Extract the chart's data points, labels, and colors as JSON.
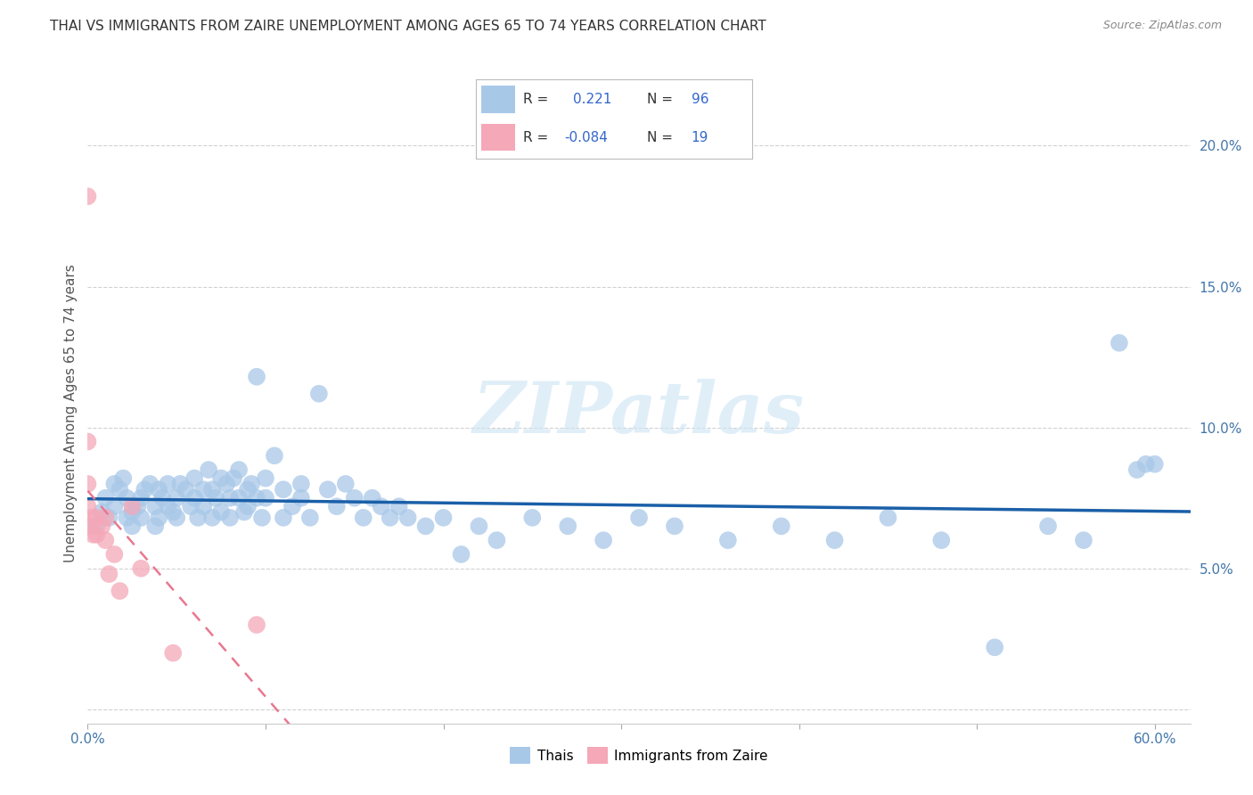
{
  "title": "THAI VS IMMIGRANTS FROM ZAIRE UNEMPLOYMENT AMONG AGES 65 TO 74 YEARS CORRELATION CHART",
  "source": "Source: ZipAtlas.com",
  "ylabel": "Unemployment Among Ages 65 to 74 years",
  "xlim": [
    0.0,
    0.62
  ],
  "ylim": [
    -0.005,
    0.215
  ],
  "xtick_positions": [
    0.0,
    0.1,
    0.2,
    0.3,
    0.4,
    0.5,
    0.6
  ],
  "xticklabels": [
    "0.0%",
    "",
    "",
    "",
    "",
    "",
    "60.0%"
  ],
  "ytick_positions": [
    0.0,
    0.05,
    0.1,
    0.15,
    0.2
  ],
  "yticklabels": [
    "",
    "5.0%",
    "10.0%",
    "15.0%",
    "20.0%"
  ],
  "thai_R": 0.221,
  "thai_N": 96,
  "zaire_R": -0.084,
  "zaire_N": 19,
  "thai_color": "#a8c8e8",
  "zaire_color": "#f4a8b8",
  "thai_line_color": "#1a5fa8",
  "zaire_line_color": "#e87890",
  "watermark": "ZIPatlas",
  "thai_scatter_x": [
    0.005,
    0.008,
    0.01,
    0.012,
    0.015,
    0.015,
    0.018,
    0.02,
    0.022,
    0.022,
    0.025,
    0.025,
    0.028,
    0.03,
    0.03,
    0.032,
    0.035,
    0.038,
    0.038,
    0.04,
    0.04,
    0.042,
    0.045,
    0.045,
    0.048,
    0.05,
    0.05,
    0.052,
    0.055,
    0.058,
    0.06,
    0.06,
    0.062,
    0.065,
    0.065,
    0.068,
    0.07,
    0.07,
    0.072,
    0.075,
    0.075,
    0.078,
    0.08,
    0.08,
    0.082,
    0.085,
    0.085,
    0.088,
    0.09,
    0.09,
    0.092,
    0.095,
    0.095,
    0.098,
    0.1,
    0.1,
    0.105,
    0.11,
    0.11,
    0.115,
    0.12,
    0.12,
    0.125,
    0.13,
    0.135,
    0.14,
    0.145,
    0.15,
    0.155,
    0.16,
    0.165,
    0.17,
    0.175,
    0.18,
    0.19,
    0.2,
    0.21,
    0.22,
    0.23,
    0.25,
    0.27,
    0.29,
    0.31,
    0.33,
    0.36,
    0.39,
    0.42,
    0.45,
    0.48,
    0.51,
    0.54,
    0.56,
    0.58,
    0.59,
    0.595,
    0.6
  ],
  "thai_scatter_y": [
    0.065,
    0.07,
    0.075,
    0.068,
    0.072,
    0.08,
    0.078,
    0.082,
    0.068,
    0.075,
    0.07,
    0.065,
    0.072,
    0.075,
    0.068,
    0.078,
    0.08,
    0.072,
    0.065,
    0.078,
    0.068,
    0.075,
    0.08,
    0.072,
    0.07,
    0.075,
    0.068,
    0.08,
    0.078,
    0.072,
    0.082,
    0.075,
    0.068,
    0.078,
    0.072,
    0.085,
    0.078,
    0.068,
    0.075,
    0.082,
    0.07,
    0.08,
    0.075,
    0.068,
    0.082,
    0.085,
    0.075,
    0.07,
    0.078,
    0.072,
    0.08,
    0.118,
    0.075,
    0.068,
    0.082,
    0.075,
    0.09,
    0.078,
    0.068,
    0.072,
    0.08,
    0.075,
    0.068,
    0.112,
    0.078,
    0.072,
    0.08,
    0.075,
    0.068,
    0.075,
    0.072,
    0.068,
    0.072,
    0.068,
    0.065,
    0.068,
    0.055,
    0.065,
    0.06,
    0.068,
    0.065,
    0.06,
    0.068,
    0.065,
    0.06,
    0.065,
    0.06,
    0.068,
    0.06,
    0.022,
    0.065,
    0.06,
    0.13,
    0.085,
    0.087,
    0.087
  ],
  "zaire_scatter_x": [
    0.0,
    0.0,
    0.0,
    0.0,
    0.0,
    0.002,
    0.003,
    0.005,
    0.005,
    0.008,
    0.01,
    0.01,
    0.012,
    0.015,
    0.018,
    0.025,
    0.03,
    0.048,
    0.095
  ],
  "zaire_scatter_y": [
    0.182,
    0.095,
    0.08,
    0.072,
    0.065,
    0.068,
    0.062,
    0.068,
    0.062,
    0.065,
    0.068,
    0.06,
    0.048,
    0.055,
    0.042,
    0.072,
    0.05,
    0.02,
    0.03
  ]
}
